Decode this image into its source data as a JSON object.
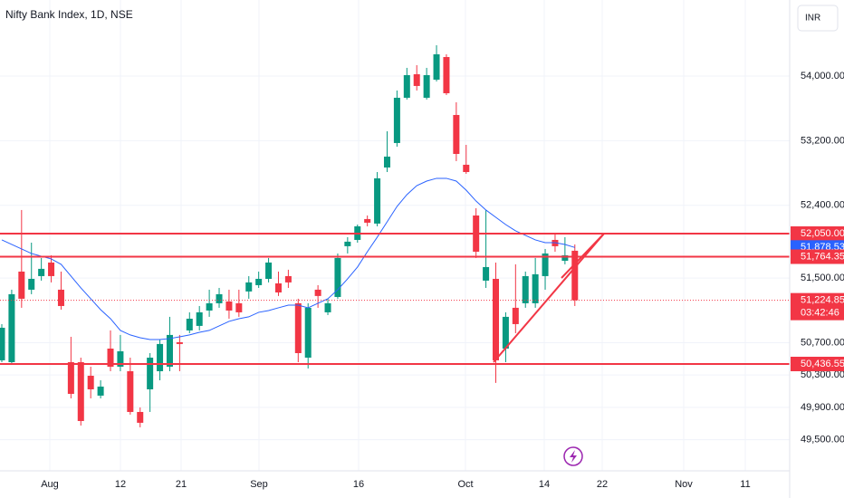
{
  "chart_data": {
    "type": "candlestick",
    "title": "Nifty Bank Index, 1D, NSE",
    "currency": "INR",
    "up_color": "#089981",
    "down_color": "#f23645",
    "open": [
      50482,
      50459,
      51580,
      51356,
      51524,
      51692,
      51356,
      50459,
      50459,
      50291,
      50045,
      50627,
      50403,
      50347,
      49843,
      50123,
      50347,
      50403,
      50706,
      50852,
      50908,
      51098,
      51188,
      51210,
      51188,
      51334,
      51412,
      51490,
      51434,
      51524,
      51188,
      50515,
      51356,
      51076,
      51266,
      51894,
      51972,
      52230,
      52174,
      52868,
      53171,
      53731,
      54022,
      53731,
      53955,
      54235,
      53518,
      52902,
      52274,
      51468,
      51490,
      50627,
      51132,
      51188,
      51188,
      51524,
      51972,
      51714,
      51838
    ],
    "high": [
      50930,
      51356,
      52342,
      51938,
      51748,
      51782,
      51580,
      50773,
      50515,
      50403,
      50235,
      50852,
      50796,
      50515,
      49899,
      50571,
      50739,
      51020,
      50796,
      51076,
      51154,
      51356,
      51378,
      51356,
      51356,
      51524,
      51580,
      51748,
      51580,
      51603,
      51244,
      51188,
      51412,
      51244,
      51804,
      52006,
      52162,
      52274,
      52812,
      53316,
      53821,
      54101,
      54134,
      54101,
      54381,
      54269,
      53675,
      53148,
      52364,
      52342,
      51692,
      51076,
      51670,
      51580,
      51748,
      51860,
      52050,
      52006,
      51916
    ],
    "low": [
      50459,
      50437,
      51132,
      51300,
      51468,
      51446,
      51109,
      50011,
      49675,
      50011,
      50011,
      50347,
      50347,
      49810,
      49653,
      49843,
      50235,
      50347,
      50347,
      50818,
      50852,
      51020,
      51132,
      50997,
      51020,
      51244,
      51378,
      51446,
      51278,
      51378,
      50459,
      50381,
      51132,
      51042,
      51244,
      51804,
      51938,
      52140,
      52140,
      52812,
      53126,
      53709,
      53821,
      53709,
      53933,
      53765,
      52947,
      52790,
      51748,
      51378,
      50202,
      50459,
      50818,
      51132,
      51132,
      51356,
      51826,
      51670,
      51154
    ],
    "close": [
      50885,
      51300,
      51244,
      51490,
      51614,
      51524,
      51154,
      50067,
      49731,
      50123,
      50157,
      50403,
      50594,
      49843,
      49709,
      50515,
      50684,
      50796,
      50684,
      50997,
      51076,
      51188,
      51300,
      51098,
      51076,
      51446,
      51490,
      51692,
      51322,
      51446,
      50571,
      51132,
      51278,
      51188,
      51748,
      51950,
      52140,
      52185,
      52734,
      53003,
      53731,
      54011,
      53877,
      54011,
      54269,
      53787,
      53036,
      52812,
      51826,
      51636,
      50482,
      51020,
      50930,
      51524,
      51547,
      51804,
      51894,
      51782,
      51224.85
    ],
    "moving_average": {
      "color": "#2962ff",
      "values": [
        51972,
        51916,
        51860,
        51804,
        51770,
        51737,
        51670,
        51524,
        51378,
        51244,
        51109,
        50997,
        50852,
        50796,
        50762,
        50739,
        50739,
        50751,
        50773,
        50796,
        50829,
        50852,
        50908,
        50964,
        50997,
        51020,
        51076,
        51098,
        51132,
        51165,
        51165,
        51132,
        51188,
        51244,
        51356,
        51490,
        51636,
        51826,
        52006,
        52196,
        52386,
        52532,
        52644,
        52700,
        52734,
        52734,
        52700,
        52588,
        52453,
        52342,
        52252,
        52162,
        52084,
        52028,
        51972,
        51938,
        51938,
        51916,
        51878.53
      ]
    },
    "ylim": [
      49114.4,
      54940.8
    ],
    "yticks": [
      {
        "value": 54000,
        "label": "54,000.00"
      },
      {
        "value": 53200,
        "label": "53,200.00"
      },
      {
        "value": 52400,
        "label": "52,400.00"
      },
      {
        "value": 51500,
        "label": "51,500.00"
      },
      {
        "value": 50700,
        "label": "50,700.00"
      },
      {
        "value": 50300,
        "label": "50,300.00"
      },
      {
        "value": 49900,
        "label": "49,900.00"
      },
      {
        "value": 49500,
        "label": "49,500.00"
      }
    ],
    "xticks": [
      "Aug",
      "12",
      "21",
      "Sep",
      "16",
      "Oct",
      "14",
      "22",
      "Nov",
      "11"
    ],
    "price_labels": [
      {
        "value": 52050,
        "label": "52,050.00",
        "color": "#f23645",
        "line": "solid"
      },
      {
        "value": 51878.53,
        "label": "51,878.53",
        "color": "#2962ff"
      },
      {
        "value": 51764.35,
        "label": "51,764.35",
        "color": "#f23645",
        "line": "solid"
      },
      {
        "value": 51224.85,
        "label": "51,224.85",
        "color": "#f23645",
        "line": "dotted",
        "countdown": "03:42:46"
      },
      {
        "value": 50436.55,
        "label": "50,436.55",
        "color": "#f23645",
        "line": "solid"
      }
    ]
  }
}
